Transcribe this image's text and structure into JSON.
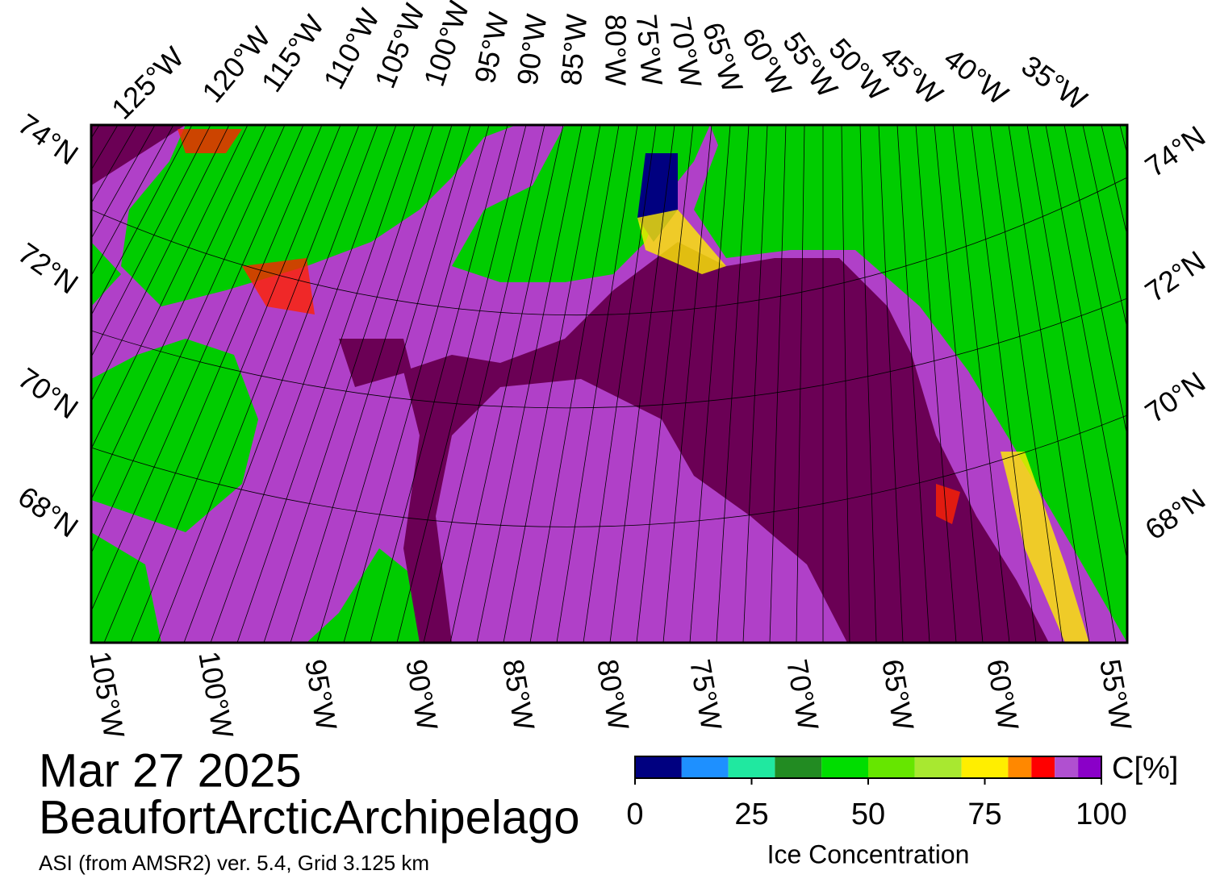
{
  "map": {
    "date": "Mar 27 2025",
    "region": "BeaufortArcticArchipelago",
    "source": "ASI (from AMSR2) ver. 5.4,  Grid 3.125 km",
    "top_longitudes": [
      "125°W",
      "120°W",
      "115°W",
      "110°W",
      "105°W",
      "100°W",
      "95°W",
      "90°W",
      "85°W",
      "80°W",
      "75°W",
      "70°W",
      "65°W",
      "60°W",
      "55°W",
      "50°W",
      "45°W",
      "40°W",
      "35°W"
    ],
    "bottom_longitudes": [
      "105°W",
      "100°W",
      "95°W",
      "90°W",
      "85°W",
      "80°W",
      "75°W",
      "70°W",
      "65°W",
      "60°W",
      "55°W"
    ],
    "left_latitudes": [
      "74°N",
      "72°N",
      "70°N",
      "68°N"
    ],
    "right_latitudes": [
      "74°N",
      "72°N",
      "70°N",
      "68°N"
    ]
  },
  "colorbar": {
    "unit": "C[%]",
    "label": "Ice Concentration",
    "range": [
      0,
      100
    ],
    "ticks": [
      0,
      25,
      50,
      75,
      100
    ],
    "bounds": [
      0,
      10,
      20,
      30,
      40,
      50,
      60,
      70,
      80,
      85,
      90,
      95,
      100
    ],
    "colors": [
      "#000080",
      "#1e90ff",
      "#20e8a0",
      "#228b22",
      "#00dd00",
      "#66e600",
      "#a8e830",
      "#ffee00",
      "#ff8800",
      "#ff0000",
      "#b050d0",
      "#8a00c8"
    ]
  }
}
